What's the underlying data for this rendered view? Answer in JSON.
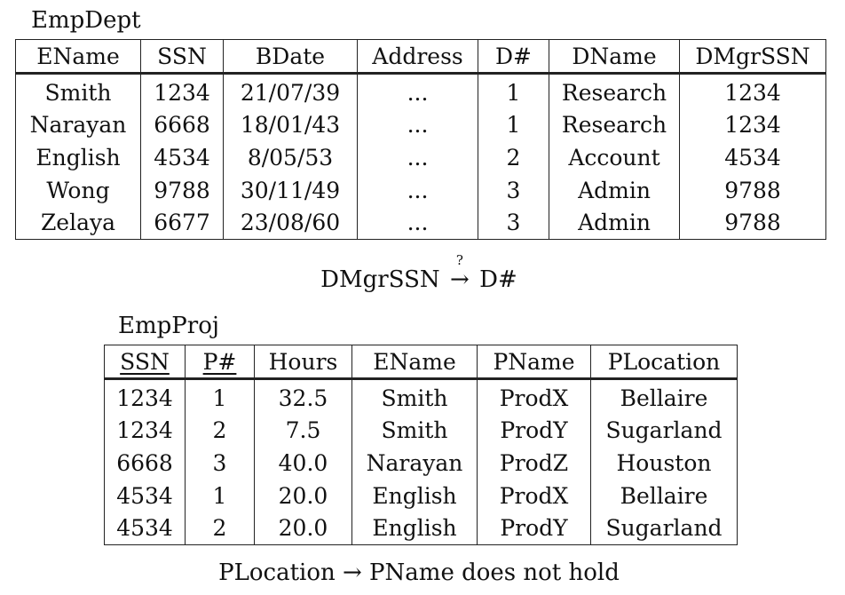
{
  "empdept": {
    "name": "EmpDept",
    "headers": [
      "EName",
      "SSN",
      "BDate",
      "Address",
      "D#",
      "DName",
      "DMgrSSN"
    ],
    "rows": [
      [
        "Smith",
        "1234",
        "21/07/39",
        "...",
        "1",
        "Research",
        "1234"
      ],
      [
        "Narayan",
        "6668",
        "18/01/43",
        "...",
        "1",
        "Research",
        "1234"
      ],
      [
        "English",
        "4534",
        "8/05/53",
        "...",
        "2",
        "Account",
        "4534"
      ],
      [
        "Wong",
        "9788",
        "30/11/49",
        "...",
        "3",
        "Admin",
        "9788"
      ],
      [
        "Zelaya",
        "6677",
        "23/08/60",
        "...",
        "3",
        "Admin",
        "9788"
      ]
    ]
  },
  "fd1": {
    "lhs": "DMgrSSN",
    "arrow": "→",
    "question": "?",
    "rhs": "D#"
  },
  "empproj": {
    "name": "EmpProj",
    "headers": [
      "SSN",
      "P#",
      "Hours",
      "EName",
      "PName",
      "PLocation"
    ],
    "key_columns": [
      "SSN",
      "P#"
    ],
    "rows": [
      [
        "1234",
        "1",
        "32.5",
        "Smith",
        "ProdX",
        "Bellaire"
      ],
      [
        "1234",
        "2",
        "7.5",
        "Smith",
        "ProdY",
        "Sugarland"
      ],
      [
        "6668",
        "3",
        "40.0",
        "Narayan",
        "ProdZ",
        "Houston"
      ],
      [
        "4534",
        "1",
        "20.0",
        "English",
        "ProdX",
        "Bellaire"
      ],
      [
        "4534",
        "2",
        "20.0",
        "English",
        "ProdY",
        "Sugarland"
      ]
    ]
  },
  "fd2": {
    "text": "PLocation → PName does not hold"
  }
}
